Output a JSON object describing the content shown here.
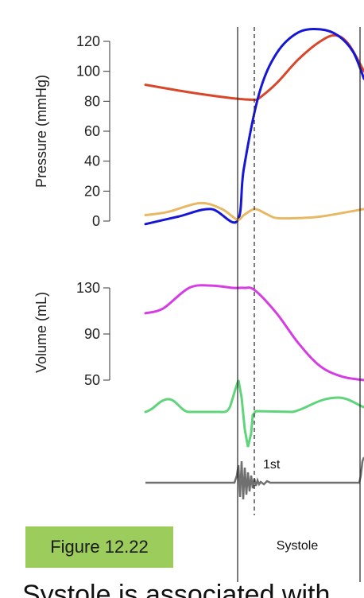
{
  "figure_label": "Figure 12.22",
  "caption_fragment": "Systole is associated with",
  "phase_label": "Systole",
  "sound_label": "1st",
  "colors": {
    "aortic_pressure": "#d9472b",
    "ventricular_pressure": "#1616d6",
    "atrial_pressure": "#e8b865",
    "ventricular_volume": "#d63ce3",
    "ecg": "#5fd47a",
    "heart_sounds": "#707070",
    "badge": "#9ccc5c"
  },
  "chart_data": [
    {
      "type": "line",
      "ylabel": "Pressure (mmHg)",
      "ylim": [
        0,
        120
      ],
      "yticks": [
        "0",
        "20",
        "40",
        "60",
        "80",
        "100",
        "120"
      ],
      "series": [
        {
          "key": "aortic",
          "x": [
            0,
            0.2,
            0.4,
            0.5,
            0.52,
            0.6,
            0.7,
            0.8,
            0.87,
            0.93,
            1.0
          ],
          "y": [
            91,
            86,
            82,
            81,
            82,
            92,
            108,
            120,
            124,
            118,
            100
          ]
        },
        {
          "key": "ventricular",
          "x": [
            0,
            0.15,
            0.3,
            0.42,
            0.45,
            0.52,
            0.6,
            0.7,
            0.8,
            0.88,
            0.95,
            1.0
          ],
          "y": [
            -2,
            3,
            8,
            0,
            35,
            85,
            112,
            126,
            128,
            124,
            113,
            95
          ]
        },
        {
          "key": "atrial",
          "x": [
            0,
            0.1,
            0.25,
            0.35,
            0.42,
            0.45,
            0.5,
            0.55,
            0.6,
            0.7,
            0.8,
            1.0
          ],
          "y": [
            4,
            6,
            12,
            8,
            1,
            4,
            8,
            5,
            2,
            2,
            3,
            8
          ]
        }
      ]
    },
    {
      "type": "line",
      "ylabel": "Volume (mL)",
      "ylim": [
        50,
        130
      ],
      "yticks": [
        "50",
        "90",
        "130"
      ],
      "series": [
        {
          "key": "volume",
          "x": [
            0,
            0.08,
            0.2,
            0.3,
            0.4,
            0.45,
            0.5,
            0.6,
            0.7,
            0.8,
            0.9,
            1.0
          ],
          "y": [
            108,
            112,
            130,
            132,
            130,
            130,
            128,
            108,
            82,
            62,
            53,
            50
          ]
        }
      ]
    }
  ]
}
